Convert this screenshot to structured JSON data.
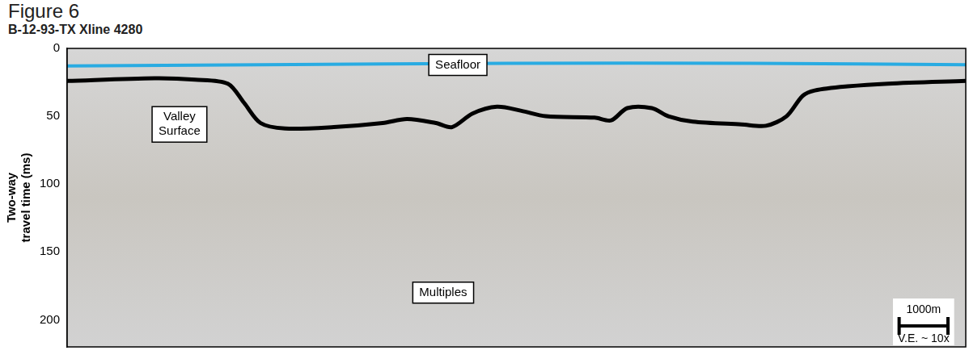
{
  "title": "Figure 6",
  "subtitle": "B-12-93-TX Xline 4280",
  "chart_data": {
    "type": "line",
    "y_label": [
      "Two-way",
      "travel time (ms)"
    ],
    "xlim": [
      0,
      18400
    ],
    "ylim": [
      0,
      220
    ],
    "yticks": [
      0,
      50,
      100,
      150,
      200
    ],
    "tick_labels": "y",
    "grid": false,
    "series": [
      {
        "name": "Seafloor",
        "color": "#29abe2",
        "x": [
          0,
          4000,
          9000,
          14000,
          18400
        ],
        "values": [
          13,
          12,
          11,
          11,
          12
        ]
      },
      {
        "name": "Valley Surface",
        "color": "#000000",
        "x": [
          0,
          1790,
          2620,
          3290,
          3620,
          3960,
          4460,
          5460,
          6460,
          6960,
          7550,
          7880,
          8300,
          8800,
          9300,
          9800,
          10800,
          11140,
          11470,
          11970,
          12310,
          12810,
          13810,
          14310,
          14730,
          15060,
          15310,
          15980,
          16810,
          18400
        ],
        "values": [
          24,
          22,
          23,
          26,
          40,
          55,
          59,
          58,
          55,
          52,
          55,
          58,
          48,
          43,
          46,
          50,
          51,
          53,
          44,
          44,
          50,
          54,
          56,
          57,
          50,
          35,
          31,
          28,
          26,
          24
        ]
      }
    ],
    "annotations": [
      "Multiples"
    ],
    "scale_bar": {
      "length": 1000,
      "label": "1000m",
      "note": "V.E. ~ 10x"
    }
  }
}
